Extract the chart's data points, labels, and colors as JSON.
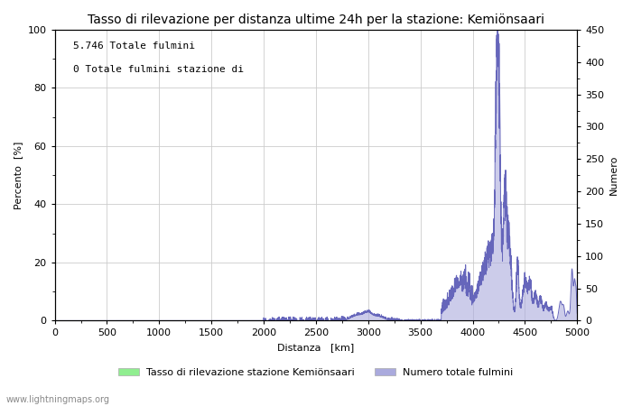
{
  "title": "Tasso di rilevazione per distanza ultime 24h per la stazione: Kemiönsaari",
  "ylabel_left": "Percento  [%]",
  "ylabel_right": "Numero",
  "xlabel": "Distanza   [km]",
  "text_annotations": [
    "5.746 Totale fulmini",
    "0 Totale fulmini stazione di"
  ],
  "watermark": "www.lightningmaps.org",
  "xlim": [
    0,
    5000
  ],
  "ylim_left": [
    0,
    100
  ],
  "ylim_right": [
    0,
    450
  ],
  "xticks": [
    0,
    500,
    1000,
    1500,
    2000,
    2500,
    3000,
    3500,
    4000,
    4500,
    5000
  ],
  "yticks_left": [
    0,
    20,
    40,
    60,
    80,
    100
  ],
  "yticks_right": [
    0,
    50,
    100,
    150,
    200,
    250,
    300,
    350,
    400,
    450
  ],
  "legend_labels": [
    "Tasso di rilevazione stazione Kemiönsaari",
    "Numero totale fulmini"
  ],
  "legend_colors": [
    "#90EE90",
    "#aaaadd"
  ],
  "background_color": "#ffffff",
  "grid_color": "#cccccc",
  "line_color_blue": "#6666bb",
  "fill_color_blue": "#aaaadd",
  "fill_color_green": "#90EE90",
  "title_fontsize": 10,
  "label_fontsize": 8,
  "tick_fontsize": 8
}
